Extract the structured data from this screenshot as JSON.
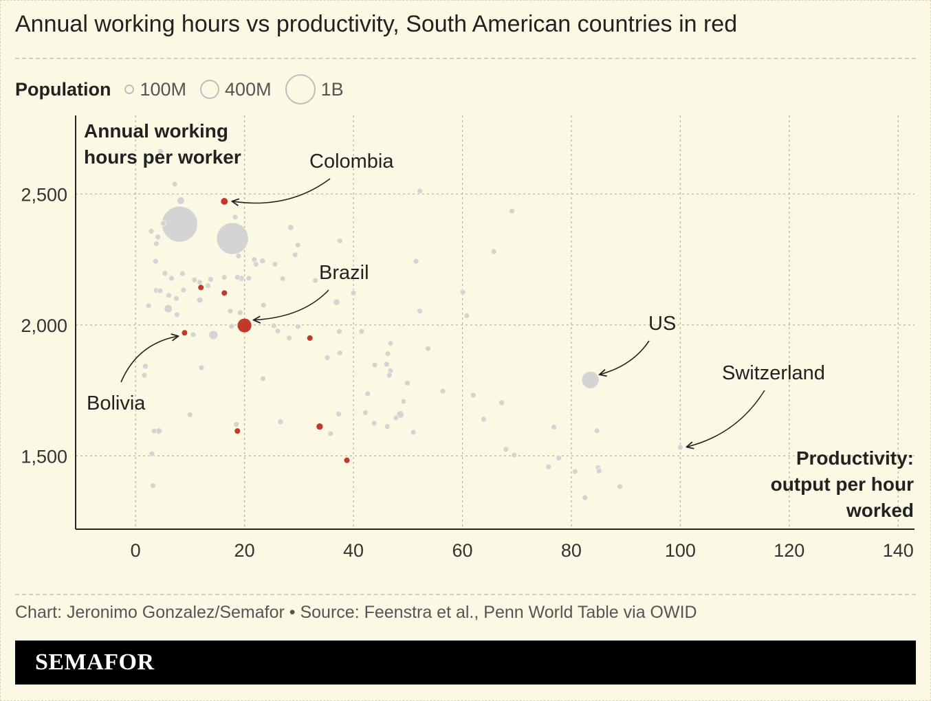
{
  "title": "Annual working hours vs productivity, South American countries in red",
  "legend": {
    "title": "Population",
    "items": [
      {
        "label": "100M",
        "population_millions": 100
      },
      {
        "label": "400M",
        "population_millions": 400
      },
      {
        "label": "1B",
        "population_millions": 1000
      }
    ]
  },
  "footer": {
    "credit": "Chart: Jeronimo Gonzalez/Semafor • Source: Feenstra et al., Penn World Table via OWID",
    "brand": "SEMAFOR"
  },
  "colors": {
    "background": "#fbf8e4",
    "south_america": "#c0392b",
    "other": "#d4d4d4",
    "brand_bar": "#000000"
  },
  "chart_data": {
    "type": "scatter",
    "title": "Annual working hours vs productivity, South American countries in red",
    "xlabel": "Productivity: output per hour worked",
    "ylabel": "Annual working hours per worker",
    "xlim": [
      -11,
      143
    ],
    "ylim": [
      1220,
      2800
    ],
    "xticks": [
      0,
      20,
      40,
      60,
      80,
      100,
      120,
      140
    ],
    "xtick_labels": [
      "0",
      "20",
      "40",
      "60",
      "80",
      "100",
      "120",
      "140"
    ],
    "yticks": [
      1500,
      2000,
      2500
    ],
    "ytick_labels": [
      "1,500",
      "2,000",
      "2,500"
    ],
    "grid": true,
    "size_encoding": "population",
    "color_encoding": {
      "south_america": "red",
      "other": "light gray"
    },
    "annotations": [
      {
        "text": "Colombia",
        "x": 16.3,
        "y": 2472
      },
      {
        "text": "Brazil",
        "x": 20,
        "y": 1998
      },
      {
        "text": "Bolivia",
        "x": 9,
        "y": 1970
      },
      {
        "text": "US",
        "x": 83.5,
        "y": 1790
      },
      {
        "text": "Switzerland",
        "x": 100,
        "y": 1532
      }
    ],
    "series": [
      {
        "name": "South American countries",
        "color": "#c0392b",
        "points": [
          {
            "x": 16.3,
            "y": 2472,
            "pop": 50
          },
          {
            "x": 12,
            "y": 2143,
            "pop": 30
          },
          {
            "x": 16.3,
            "y": 2122,
            "pop": 18
          },
          {
            "x": 20,
            "y": 1998,
            "pop": 210
          },
          {
            "x": 9,
            "y": 1970,
            "pop": 12
          },
          {
            "x": 32,
            "y": 1950,
            "pop": 18
          },
          {
            "x": 33.8,
            "y": 1612,
            "pop": 45
          },
          {
            "x": 18.7,
            "y": 1595,
            "pop": 18
          },
          {
            "x": 38.8,
            "y": 1483,
            "pop": 8
          }
        ]
      },
      {
        "name": "Other countries",
        "color": "#d4d4d4",
        "points": [
          {
            "x": 4.6,
            "y": 2663,
            "pop": 8
          },
          {
            "x": 7.2,
            "y": 2538,
            "pop": 6
          },
          {
            "x": 8.3,
            "y": 2475,
            "pop": 60
          },
          {
            "x": 8.1,
            "y": 2385,
            "pop": 1400
          },
          {
            "x": 17.8,
            "y": 2330,
            "pop": 1100
          },
          {
            "x": 18.3,
            "y": 2412,
            "pop": 4
          },
          {
            "x": 2.9,
            "y": 2358,
            "pop": 8
          },
          {
            "x": 4.1,
            "y": 2336,
            "pop": 8
          },
          {
            "x": 3.8,
            "y": 2310,
            "pop": 8
          },
          {
            "x": 5.1,
            "y": 2388,
            "pop": 8
          },
          {
            "x": 28.5,
            "y": 2372,
            "pop": 40
          },
          {
            "x": 29.8,
            "y": 2305,
            "pop": 15
          },
          {
            "x": 29.3,
            "y": 2268,
            "pop": 10
          },
          {
            "x": 37.5,
            "y": 2321,
            "pop": 8
          },
          {
            "x": 18.9,
            "y": 2263,
            "pop": 5
          },
          {
            "x": 21.8,
            "y": 2250,
            "pop": 8
          },
          {
            "x": 22.1,
            "y": 2232,
            "pop": 8
          },
          {
            "x": 3.7,
            "y": 2243,
            "pop": 12
          },
          {
            "x": 23.3,
            "y": 2245,
            "pop": 35
          },
          {
            "x": 25.6,
            "y": 2232,
            "pop": 25
          },
          {
            "x": 27.0,
            "y": 2177,
            "pop": 12
          },
          {
            "x": 52.2,
            "y": 2511,
            "pop": 8
          },
          {
            "x": 69.1,
            "y": 2435,
            "pop": 6
          },
          {
            "x": 65.8,
            "y": 2280,
            "pop": 8
          },
          {
            "x": 51.5,
            "y": 2243,
            "pop": 8
          },
          {
            "x": 5.4,
            "y": 2197,
            "pop": 12
          },
          {
            "x": 6.6,
            "y": 2178,
            "pop": 12
          },
          {
            "x": 8.6,
            "y": 2196,
            "pop": 25
          },
          {
            "x": 10.8,
            "y": 2172,
            "pop": 8
          },
          {
            "x": 11.8,
            "y": 2163,
            "pop": 15
          },
          {
            "x": 13.3,
            "y": 2150,
            "pop": 12
          },
          {
            "x": 13.8,
            "y": 2174,
            "pop": 15
          },
          {
            "x": 16.3,
            "y": 2182,
            "pop": 8
          },
          {
            "x": 18.7,
            "y": 2182,
            "pop": 12
          },
          {
            "x": 19.4,
            "y": 2178,
            "pop": 40
          },
          {
            "x": 20.8,
            "y": 2178,
            "pop": 8
          },
          {
            "x": 33.0,
            "y": 2170,
            "pop": 8
          },
          {
            "x": 3.8,
            "y": 2132,
            "pop": 25
          },
          {
            "x": 4.5,
            "y": 2130,
            "pop": 25
          },
          {
            "x": 6.1,
            "y": 2113,
            "pop": 12
          },
          {
            "x": 7.5,
            "y": 2101,
            "pop": 12
          },
          {
            "x": 8.8,
            "y": 2133,
            "pop": 8
          },
          {
            "x": 11.8,
            "y": 2095,
            "pop": 40
          },
          {
            "x": 2.4,
            "y": 2073,
            "pop": 12
          },
          {
            "x": 6.0,
            "y": 2062,
            "pop": 70
          },
          {
            "x": 7.6,
            "y": 2039,
            "pop": 12
          },
          {
            "x": 17.4,
            "y": 2053,
            "pop": 12
          },
          {
            "x": 19.2,
            "y": 2047,
            "pop": 8
          },
          {
            "x": 23.5,
            "y": 2076,
            "pop": 12
          },
          {
            "x": 36.9,
            "y": 2087,
            "pop": 45
          },
          {
            "x": 40.0,
            "y": 2122,
            "pop": 12
          },
          {
            "x": 60.1,
            "y": 2125,
            "pop": 25
          },
          {
            "x": 60.8,
            "y": 2035,
            "pop": 12
          },
          {
            "x": 52.2,
            "y": 2053,
            "pop": 8
          },
          {
            "x": 10.6,
            "y": 1963,
            "pop": 8
          },
          {
            "x": 14.3,
            "y": 1962,
            "pop": 90
          },
          {
            "x": 17.6,
            "y": 1995,
            "pop": 8
          },
          {
            "x": 25.4,
            "y": 1997,
            "pop": 12
          },
          {
            "x": 26.1,
            "y": 1977,
            "pop": 8
          },
          {
            "x": 28.2,
            "y": 1950,
            "pop": 8
          },
          {
            "x": 29.8,
            "y": 1994,
            "pop": 8
          },
          {
            "x": 37.4,
            "y": 1975,
            "pop": 12
          },
          {
            "x": 41.5,
            "y": 1975,
            "pop": 8
          },
          {
            "x": 46.8,
            "y": 1930,
            "pop": 8
          },
          {
            "x": 53.7,
            "y": 1910,
            "pop": 25
          },
          {
            "x": 37.5,
            "y": 1893,
            "pop": 8
          },
          {
            "x": 35.2,
            "y": 1875,
            "pop": 8
          },
          {
            "x": 46.3,
            "y": 1890,
            "pop": 8
          },
          {
            "x": 43.9,
            "y": 1847,
            "pop": 8
          },
          {
            "x": 46.1,
            "y": 1850,
            "pop": 8
          },
          {
            "x": 46.8,
            "y": 1825,
            "pop": 12
          },
          {
            "x": 46.6,
            "y": 1808,
            "pop": 12
          },
          {
            "x": 49.9,
            "y": 1778,
            "pop": 8
          },
          {
            "x": 1.8,
            "y": 1842,
            "pop": 35
          },
          {
            "x": 12.1,
            "y": 1837,
            "pop": 8
          },
          {
            "x": 1.6,
            "y": 1808,
            "pop": 12
          },
          {
            "x": 23.4,
            "y": 1795,
            "pop": 8
          },
          {
            "x": 56.4,
            "y": 1747,
            "pop": 25
          },
          {
            "x": 42.6,
            "y": 1737,
            "pop": 12
          },
          {
            "x": 49.2,
            "y": 1708,
            "pop": 8
          },
          {
            "x": 62.0,
            "y": 1732,
            "pop": 20
          },
          {
            "x": 67.2,
            "y": 1703,
            "pop": 20
          },
          {
            "x": 42.2,
            "y": 1665,
            "pop": 8
          },
          {
            "x": 48.6,
            "y": 1658,
            "pop": 60
          },
          {
            "x": 37.3,
            "y": 1660,
            "pop": 8
          },
          {
            "x": 10.0,
            "y": 1657,
            "pop": 12
          },
          {
            "x": 47.8,
            "y": 1645,
            "pop": 12
          },
          {
            "x": 43.8,
            "y": 1625,
            "pop": 12
          },
          {
            "x": 46.2,
            "y": 1612,
            "pop": 12
          },
          {
            "x": 26.6,
            "y": 1630,
            "pop": 35
          },
          {
            "x": 18.5,
            "y": 1620,
            "pop": 12
          },
          {
            "x": 63.9,
            "y": 1640,
            "pop": 20
          },
          {
            "x": 76.8,
            "y": 1610,
            "pop": 12
          },
          {
            "x": 3.4,
            "y": 1595,
            "pop": 12
          },
          {
            "x": 4.3,
            "y": 1595,
            "pop": 45
          },
          {
            "x": 51.0,
            "y": 1590,
            "pop": 8
          },
          {
            "x": 35.8,
            "y": 1585,
            "pop": 20
          },
          {
            "x": 84.7,
            "y": 1596,
            "pop": 8
          },
          {
            "x": 83.5,
            "y": 1790,
            "pop": 330
          },
          {
            "x": 100.0,
            "y": 1532,
            "pop": 8
          },
          {
            "x": 68.0,
            "y": 1525,
            "pop": 20
          },
          {
            "x": 69.5,
            "y": 1503,
            "pop": 8
          },
          {
            "x": 77.7,
            "y": 1492,
            "pop": 20
          },
          {
            "x": 75.8,
            "y": 1458,
            "pop": 8
          },
          {
            "x": 84.9,
            "y": 1455,
            "pop": 12
          },
          {
            "x": 85.1,
            "y": 1442,
            "pop": 12
          },
          {
            "x": 80.7,
            "y": 1440,
            "pop": 8
          },
          {
            "x": 88.9,
            "y": 1383,
            "pop": 8
          },
          {
            "x": 82.5,
            "y": 1340,
            "pop": 20
          },
          {
            "x": 3.0,
            "y": 1508,
            "pop": 12
          },
          {
            "x": 3.2,
            "y": 1386,
            "pop": 12
          }
        ]
      }
    ]
  }
}
